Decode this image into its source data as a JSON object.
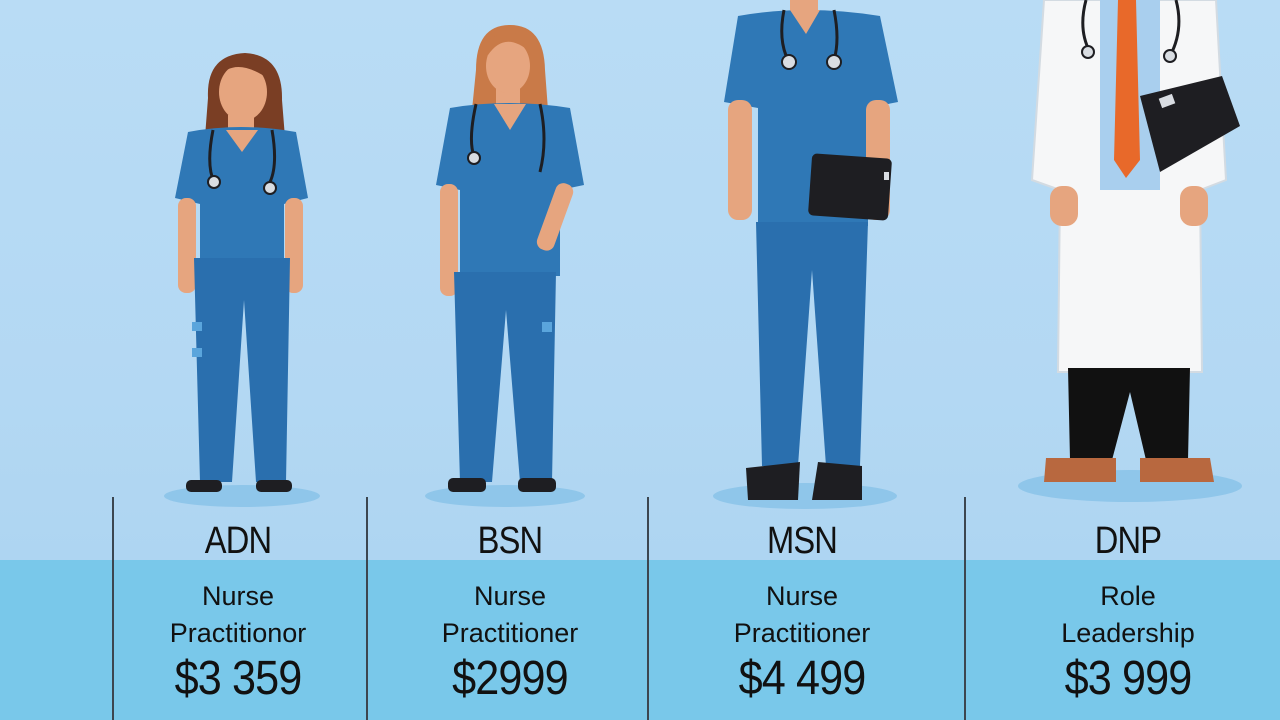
{
  "columns": [
    {
      "degree": "ADN",
      "role_line1": "Nurse",
      "role_line2": "Practitionor",
      "price": "$3 359"
    },
    {
      "degree": "BSN",
      "role_line1": "Nurse",
      "role_line2": "Practitioner",
      "price": "$2999"
    },
    {
      "degree": "MSN",
      "role_line1": "Nurse",
      "role_line2": "Practitioner",
      "price": "$4 499"
    },
    {
      "degree": "DNP",
      "role_line1": "Role",
      "role_line2": "Leadership",
      "price": "$3 999"
    }
  ],
  "colors": {
    "background": "#b9dcf5",
    "band": "#79c8ea",
    "scrubs": "#2f78b6",
    "skin": "#e6a57f",
    "tie": "#e8692a",
    "coat": "#f6f7f8"
  },
  "figures": [
    {
      "name": "adn-nurse-figure"
    },
    {
      "name": "bsn-nurse-figure"
    },
    {
      "name": "msn-nurse-figure"
    },
    {
      "name": "dnp-doctor-figure"
    }
  ]
}
